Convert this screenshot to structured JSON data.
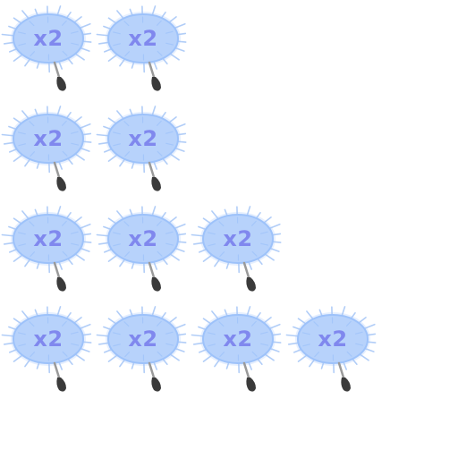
{
  "colors": {
    "background": "#ffffff",
    "bubble_fill": "#b7d2fb",
    "bubble_edge": "#9dc2fa",
    "spike": "#a9c8f7",
    "label": "#8088ee",
    "stem": "#9a9a9a",
    "tip": "#3a3a3a"
  },
  "icons": {
    "powerup": "spiky-bubble-with-stem-icon"
  },
  "rows": [
    {
      "items": [
        {
          "label": "x2"
        },
        {
          "label": "x2"
        }
      ]
    },
    {
      "items": [
        {
          "label": "x2"
        },
        {
          "label": "x2"
        }
      ]
    },
    {
      "items": [
        {
          "label": "x2"
        },
        {
          "label": "x2"
        },
        {
          "label": "x2"
        }
      ]
    },
    {
      "items": [
        {
          "label": "x2"
        },
        {
          "label": "x2"
        },
        {
          "label": "x2"
        },
        {
          "label": "x2"
        }
      ]
    }
  ]
}
